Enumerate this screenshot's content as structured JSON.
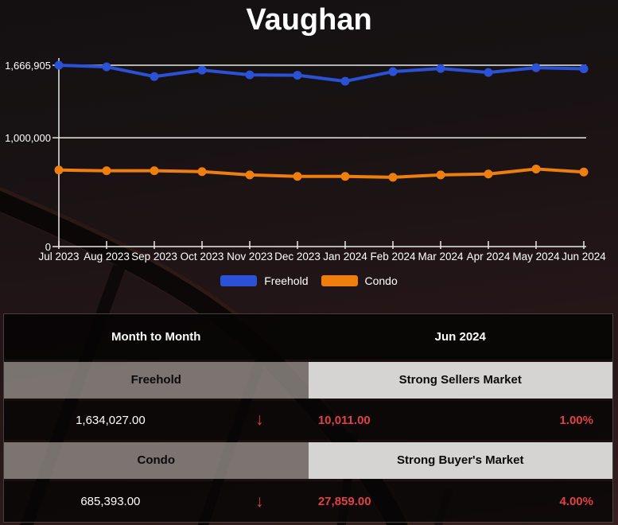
{
  "title": "Vaughan",
  "colors": {
    "freehold_blue": "#2b52d6",
    "condo_orange": "#ee7f0e",
    "negative_red": "#de4242",
    "grid_white": "#e9e9e9",
    "cell_gray": "#97918d",
    "cell_light": "#d6d4d2"
  },
  "chart_data": {
    "type": "line",
    "x": [
      "Jul 2023",
      "Aug 2023",
      "Sep 2023",
      "Oct 2023",
      "Nov 2023",
      "Dec 2023",
      "Jan 2024",
      "Feb 2024",
      "Mar 2024",
      "Apr 2024",
      "May 2024",
      "Jun 2024"
    ],
    "series": [
      {
        "name": "Freehold",
        "color": "#2b52d6",
        "values": [
          1666905,
          1652000,
          1563000,
          1622000,
          1578000,
          1575000,
          1520000,
          1608000,
          1637000,
          1600000,
          1644038,
          1634027
        ]
      },
      {
        "name": "Condo",
        "color": "#ee7f0e",
        "values": [
          704000,
          697000,
          697000,
          689000,
          659000,
          645000,
          645000,
          637000,
          659000,
          667000,
          713252,
          685393
        ]
      }
    ],
    "title": "Vaughan",
    "xlabel": "",
    "ylabel": "",
    "ylim": [
      0,
      1666905
    ],
    "yticks": [
      {
        "label": "1,666,905",
        "value": 1666905
      },
      {
        "label": "1,000,000",
        "value": 1000000
      },
      {
        "label": "0",
        "value": 0
      }
    ],
    "grid": "horizontal-only",
    "legend_position": "bottom"
  },
  "legend": [
    {
      "label": "Freehold",
      "color": "#2b52d6"
    },
    {
      "label": "Condo",
      "color": "#ee7f0e"
    }
  ],
  "table": {
    "header": {
      "left": "Month to Month",
      "right": "Jun 2024"
    },
    "sections": [
      {
        "name": "Freehold",
        "market": "Strong Sellers Market",
        "value": "1,634,027.00",
        "arrow": "↓",
        "direction": "down",
        "change": "10,011.00",
        "percent": "1.00%"
      },
      {
        "name": "Condo",
        "market": "Strong Buyer's Market",
        "value": "685,393.00",
        "arrow": "↓",
        "direction": "down",
        "change": "27,859.00",
        "percent": "4.00%"
      }
    ]
  }
}
